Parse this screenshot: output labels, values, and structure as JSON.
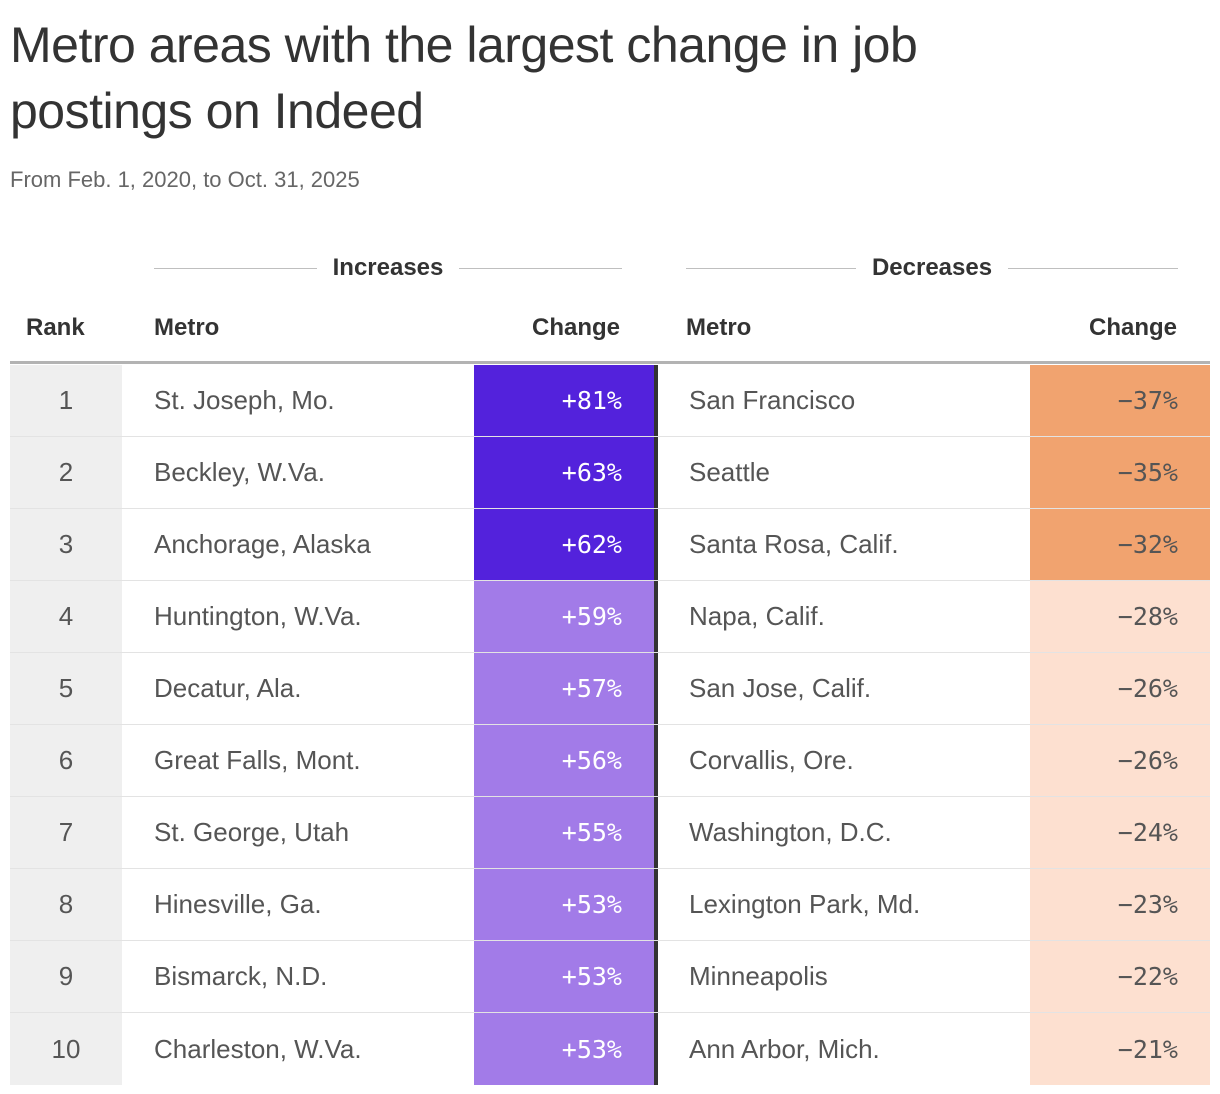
{
  "title": "Metro areas with the largest change in job postings on Indeed",
  "subtitle": "From Feb. 1, 2020, to Oct. 31, 2025",
  "groups": {
    "increases": "Increases",
    "decreases": "Decreases"
  },
  "columns": {
    "rank": "Rank",
    "metro": "Metro",
    "change": "Change"
  },
  "colors": {
    "inc_strong": "#5322dc",
    "inc_light": "#a27be8",
    "dec_strong": "#f1a36f",
    "dec_light": "#fde0d0"
  },
  "chart_data": {
    "type": "table",
    "columns": [
      "Rank",
      "Metro",
      "Change",
      "Metro",
      "Change"
    ],
    "rows": [
      {
        "rank": "1",
        "inc_metro": "St. Joseph, Mo.",
        "inc_change": "+81%",
        "inc_value": 81,
        "dec_metro": "San Francisco",
        "dec_change": "−37%",
        "dec_value": -37
      },
      {
        "rank": "2",
        "inc_metro": "Beckley, W.Va.",
        "inc_change": "+63%",
        "inc_value": 63,
        "dec_metro": "Seattle",
        "dec_change": "−35%",
        "dec_value": -35
      },
      {
        "rank": "3",
        "inc_metro": "Anchorage, Alaska",
        "inc_change": "+62%",
        "inc_value": 62,
        "dec_metro": "Santa Rosa, Calif.",
        "dec_change": "−32%",
        "dec_value": -32
      },
      {
        "rank": "4",
        "inc_metro": "Huntington, W.Va.",
        "inc_change": "+59%",
        "inc_value": 59,
        "dec_metro": "Napa, Calif.",
        "dec_change": "−28%",
        "dec_value": -28
      },
      {
        "rank": "5",
        "inc_metro": "Decatur, Ala.",
        "inc_change": "+57%",
        "inc_value": 57,
        "dec_metro": "San Jose, Calif.",
        "dec_change": "−26%",
        "dec_value": -26
      },
      {
        "rank": "6",
        "inc_metro": "Great Falls, Mont.",
        "inc_change": "+56%",
        "inc_value": 56,
        "dec_metro": "Corvallis, Ore.",
        "dec_change": "−26%",
        "dec_value": -26
      },
      {
        "rank": "7",
        "inc_metro": "St. George, Utah",
        "inc_change": "+55%",
        "inc_value": 55,
        "dec_metro": "Washington, D.C.",
        "dec_change": "−24%",
        "dec_value": -24
      },
      {
        "rank": "8",
        "inc_metro": "Hinesville, Ga.",
        "inc_change": "+53%",
        "inc_value": 53,
        "dec_metro": "Lexington Park, Md.",
        "dec_change": "−23%",
        "dec_value": -23
      },
      {
        "rank": "9",
        "inc_metro": "Bismarck, N.D.",
        "inc_change": "+53%",
        "inc_value": 53,
        "dec_metro": "Minneapolis",
        "dec_change": "−22%",
        "dec_value": -22
      },
      {
        "rank": "10",
        "inc_metro": "Charleston, W.Va.",
        "inc_change": "+53%",
        "inc_value": 53,
        "dec_metro": "Ann Arbor, Mich.",
        "dec_change": "−21%",
        "dec_value": -21
      }
    ]
  }
}
